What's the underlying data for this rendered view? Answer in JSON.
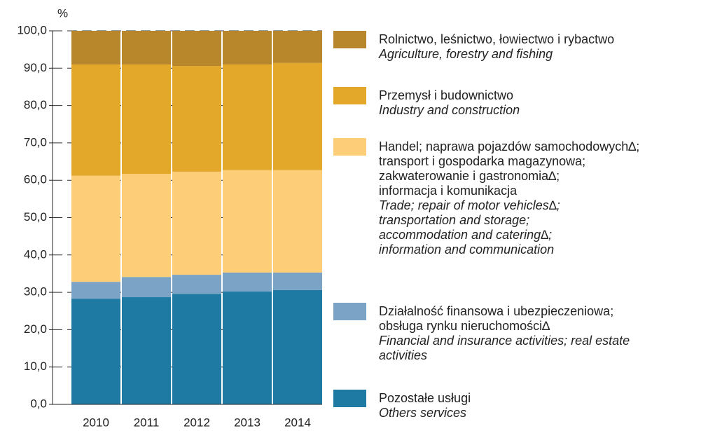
{
  "chart_data": {
    "type": "stacked_bar",
    "y_unit": "%",
    "categories": [
      "2010",
      "2011",
      "2012",
      "2013",
      "2014"
    ],
    "ylim": [
      0,
      100
    ],
    "yticks": [
      {
        "value": 0,
        "label": "0,0"
      },
      {
        "value": 10,
        "label": "10,0"
      },
      {
        "value": 20,
        "label": "20,0"
      },
      {
        "value": 30,
        "label": "30,0"
      },
      {
        "value": 40,
        "label": "40,0"
      },
      {
        "value": 50,
        "label": "50,0"
      },
      {
        "value": 60,
        "label": "60,0"
      },
      {
        "value": 70,
        "label": "70,0"
      },
      {
        "value": 80,
        "label": "80,0"
      },
      {
        "value": 90,
        "label": "90,0"
      },
      {
        "value": 100,
        "label": "100,0"
      }
    ],
    "grid": true,
    "series": [
      {
        "name": "Pozostałe usługi",
        "name_en": "Others services",
        "color": "#1f7aa3",
        "values": [
          28.3,
          28.7,
          29.6,
          30.2,
          30.6
        ]
      },
      {
        "name": "Działalność finansowa i ubezpieczeniowa;\nobsługa rynku nieruchomości∆",
        "name_en": "Financial and insurance activities; real estate\nactivities",
        "color": "#7aa3c6",
        "values": [
          4.5,
          5.4,
          5.1,
          5.1,
          4.7
        ]
      },
      {
        "name": "Handel; naprawa pojazdów samochodowych∆;\ntransport i gospodarka magazynowa;\nzakwaterowanie i gastronomia∆;\ninformacja i komunikacja",
        "name_en": "Trade; repair of motor vehicles∆;\ntransportation and storage;\naccommodation and catering∆;\ninformation and communication",
        "color": "#fdcd78",
        "values": [
          28.4,
          27.6,
          27.6,
          27.4,
          27.4
        ]
      },
      {
        "name": "Przemysł i budownictwo",
        "name_en": "Industry and construction",
        "color": "#e3a82a",
        "values": [
          29.8,
          29.3,
          28.3,
          28.3,
          28.7
        ]
      },
      {
        "name": "Rolnictwo, leśnictwo, łowiectwo i rybactwo",
        "name_en": "Agriculture, forestry and fishing",
        "color": "#b8862b",
        "values": [
          9.0,
          9.0,
          9.4,
          9.0,
          8.6
        ]
      }
    ]
  }
}
